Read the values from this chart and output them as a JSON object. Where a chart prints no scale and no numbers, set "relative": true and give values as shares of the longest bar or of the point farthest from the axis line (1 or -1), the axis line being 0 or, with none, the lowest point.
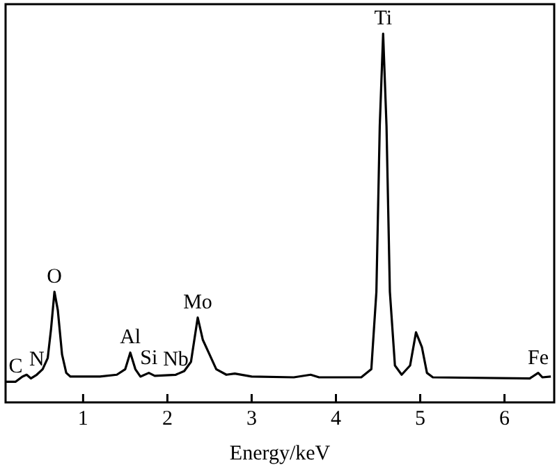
{
  "chart_data": {
    "type": "line",
    "relative": true,
    "xlabel": "Energy/keV",
    "xlim": [
      0.08,
      6.59
    ],
    "xticks": [
      1,
      2,
      3,
      4,
      5,
      6
    ],
    "grid": false,
    "legend": false,
    "marker": "none",
    "line_style": "solid",
    "series": [
      {
        "color": "#000000",
        "x": [
          0.08,
          0.2,
          0.28,
          0.33,
          0.38,
          0.45,
          0.52,
          0.58,
          0.62,
          0.66,
          0.7,
          0.75,
          0.8,
          0.85,
          1.2,
          1.4,
          1.5,
          1.56,
          1.62,
          1.68,
          1.78,
          1.85,
          2.1,
          2.2,
          2.28,
          2.36,
          2.42,
          2.5,
          2.58,
          2.7,
          2.8,
          3.0,
          3.5,
          3.7,
          3.8,
          4.3,
          4.42,
          4.48,
          4.52,
          4.56,
          4.6,
          4.64,
          4.7,
          4.78,
          4.88,
          4.95,
          5.02,
          5.08,
          5.15,
          6.3,
          6.4,
          6.45,
          6.55
        ],
        "values": [
          0.056,
          0.056,
          0.07,
          0.075,
          0.065,
          0.075,
          0.09,
          0.12,
          0.2,
          0.3,
          0.25,
          0.13,
          0.08,
          0.07,
          0.07,
          0.075,
          0.09,
          0.135,
          0.09,
          0.07,
          0.08,
          0.072,
          0.075,
          0.085,
          0.11,
          0.23,
          0.17,
          0.13,
          0.09,
          0.075,
          0.078,
          0.07,
          0.068,
          0.075,
          0.068,
          0.068,
          0.09,
          0.3,
          0.75,
          1.0,
          0.75,
          0.3,
          0.1,
          0.075,
          0.1,
          0.19,
          0.15,
          0.08,
          0.068,
          0.065,
          0.08,
          0.068,
          0.07
        ]
      }
    ],
    "annotations": [
      {
        "text": "C",
        "x": 0.2,
        "y": 0.056
      },
      {
        "text": "N",
        "x": 0.45,
        "y": 0.075
      },
      {
        "text": "O",
        "x": 0.66,
        "y": 0.3
      },
      {
        "text": "Al",
        "x": 1.56,
        "y": 0.135
      },
      {
        "text": "Si",
        "x": 1.78,
        "y": 0.08
      },
      {
        "text": "Nb",
        "x": 2.1,
        "y": 0.075
      },
      {
        "text": "Mo",
        "x": 2.36,
        "y": 0.23
      },
      {
        "text": "Ti",
        "x": 4.56,
        "y": 1.0
      },
      {
        "text": "Fe",
        "x": 6.4,
        "y": 0.08
      }
    ]
  }
}
